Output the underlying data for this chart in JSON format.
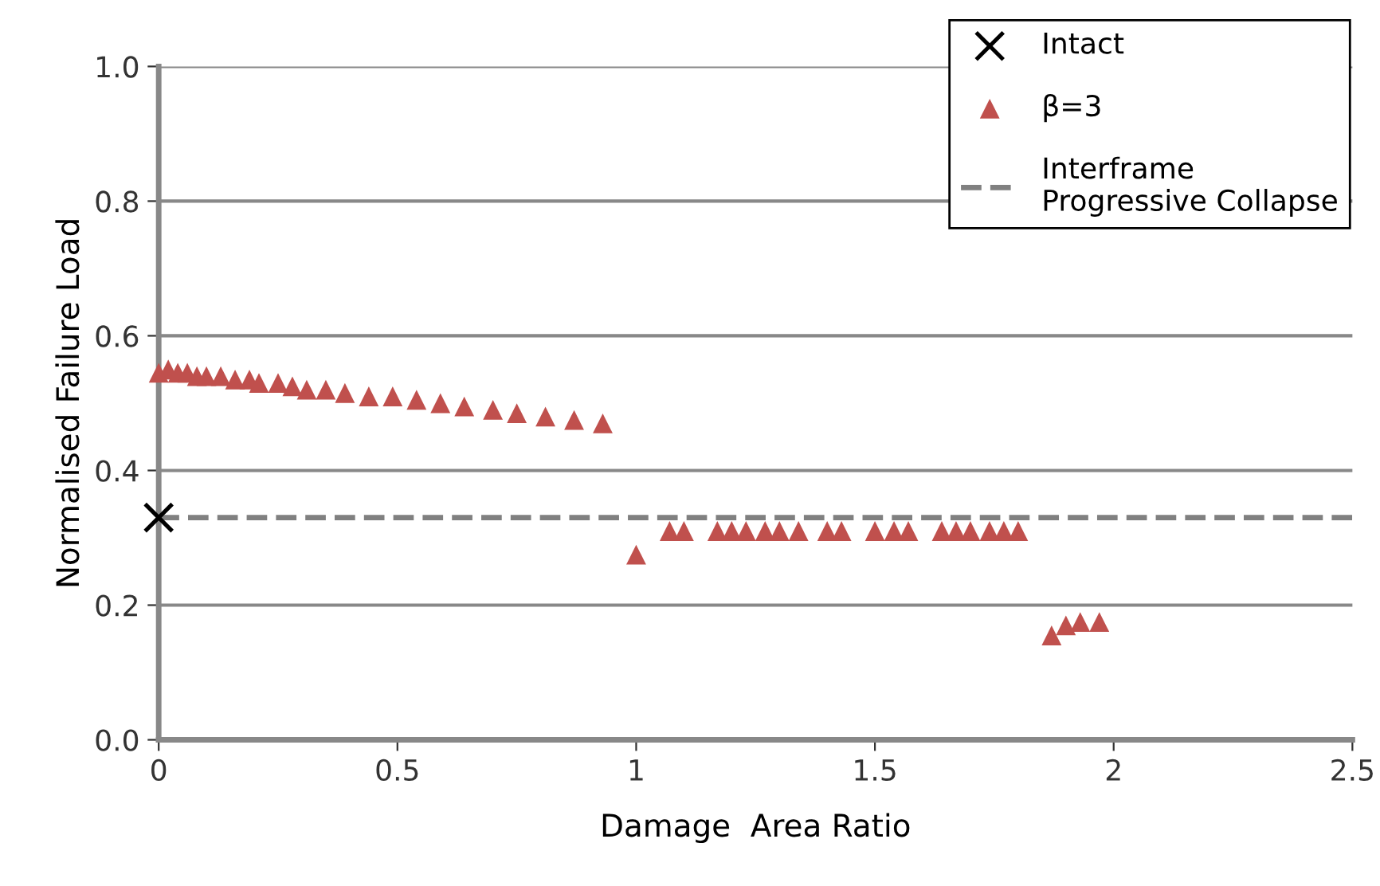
{
  "chart_data": {
    "type": "scatter",
    "xlabel": "Damage  Area Ratio",
    "ylabel": "Normalised Failure Load",
    "xlim": [
      0,
      2.5
    ],
    "xticks": [
      0,
      0.5,
      1,
      1.5,
      2,
      2.5
    ],
    "ylim": [
      0,
      1.0
    ],
    "yticks": [
      {
        "value": 0,
        "label": "0.0"
      },
      {
        "value": 0.2,
        "label": "0.2"
      },
      {
        "value": 0.4,
        "label": "0.4"
      },
      {
        "value": 0.6,
        "label": "0.6"
      },
      {
        "value": 0.8,
        "label": "0.8"
      },
      {
        "value": 1.0,
        "label": "1.0"
      }
    ],
    "grid": "y",
    "legend": "top right",
    "series": [
      {
        "name": "Intact",
        "color": "#000000",
        "marker": "cross",
        "x": [
          0
        ],
        "values": [
          0.33
        ]
      },
      {
        "name": "β=3",
        "color": "#c0504d",
        "marker": "triangle",
        "x": [
          0,
          0.02,
          0.04,
          0.06,
          0.08,
          0.1,
          0.13,
          0.16,
          0.19,
          0.21,
          0.25,
          0.28,
          0.31,
          0.35,
          0.39,
          0.44,
          0.49,
          0.54,
          0.59,
          0.64,
          0.7,
          0.75,
          0.81,
          0.87,
          0.93,
          1.0,
          1.07,
          1.1,
          1.17,
          1.2,
          1.23,
          1.27,
          1.3,
          1.34,
          1.4,
          1.43,
          1.5,
          1.54,
          1.57,
          1.64,
          1.67,
          1.7,
          1.74,
          1.77,
          1.8,
          1.87,
          1.9,
          1.93,
          1.97
        ],
        "values": [
          0.545,
          0.55,
          0.545,
          0.545,
          0.54,
          0.54,
          0.54,
          0.535,
          0.535,
          0.53,
          0.53,
          0.525,
          0.52,
          0.52,
          0.515,
          0.51,
          0.51,
          0.505,
          0.5,
          0.495,
          0.49,
          0.485,
          0.48,
          0.475,
          0.47,
          0.275,
          0.31,
          0.31,
          0.31,
          0.31,
          0.31,
          0.31,
          0.31,
          0.31,
          0.31,
          0.31,
          0.31,
          0.31,
          0.31,
          0.31,
          0.31,
          0.31,
          0.31,
          0.31,
          0.31,
          0.155,
          0.17,
          0.175,
          0.175
        ]
      }
    ],
    "ref_lines": [
      {
        "axis": "y",
        "value": 0.33,
        "label": "Interframe\nProgressive Collapse",
        "color": "#808080",
        "line_style": "dashed"
      }
    ]
  }
}
